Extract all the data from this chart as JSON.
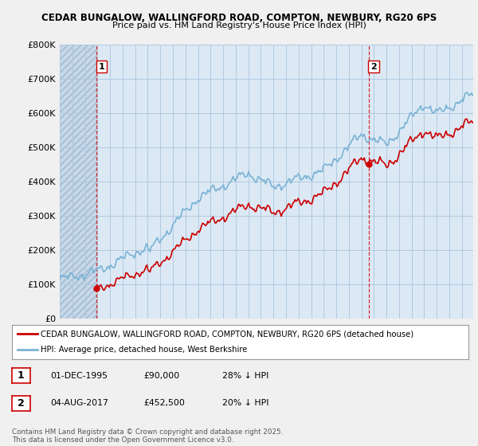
{
  "title1": "CEDAR BUNGALOW, WALLINGFORD ROAD, COMPTON, NEWBURY, RG20 6PS",
  "title2": "Price paid vs. HM Land Registry's House Price Index (HPI)",
  "ylim": [
    0,
    800000
  ],
  "yticks": [
    0,
    100000,
    200000,
    300000,
    400000,
    500000,
    600000,
    700000,
    800000
  ],
  "ytick_labels": [
    "£0",
    "£100K",
    "£200K",
    "£300K",
    "£400K",
    "£500K",
    "£600K",
    "£700K",
    "£800K"
  ],
  "xlim_start": 1993.0,
  "xlim_end": 2025.9,
  "hpi_color": "#7ab3d4",
  "price_color": "#cc0000",
  "sale1_x": 1995.92,
  "sale1_y": 90000,
  "sale2_x": 2017.58,
  "sale2_y": 452500,
  "legend_line1": "CEDAR BUNGALOW, WALLINGFORD ROAD, COMPTON, NEWBURY, RG20 6PS (detached house)",
  "legend_line2": "HPI: Average price, detached house, West Berkshire",
  "annotation1_label": "1",
  "annotation1_date": "01-DEC-1995",
  "annotation1_price": "£90,000",
  "annotation1_hpi": "28% ↓ HPI",
  "annotation2_label": "2",
  "annotation2_date": "04-AUG-2017",
  "annotation2_price": "£452,500",
  "annotation2_hpi": "20% ↓ HPI",
  "footer": "Contains HM Land Registry data © Crown copyright and database right 2025.\nThis data is licensed under the Open Government Licence v3.0.",
  "bg_color": "#f0f0f0",
  "plot_bg": "#dce9f5",
  "grid_color": "#b0c8e0",
  "hatch_bg": "#c8d8e8"
}
